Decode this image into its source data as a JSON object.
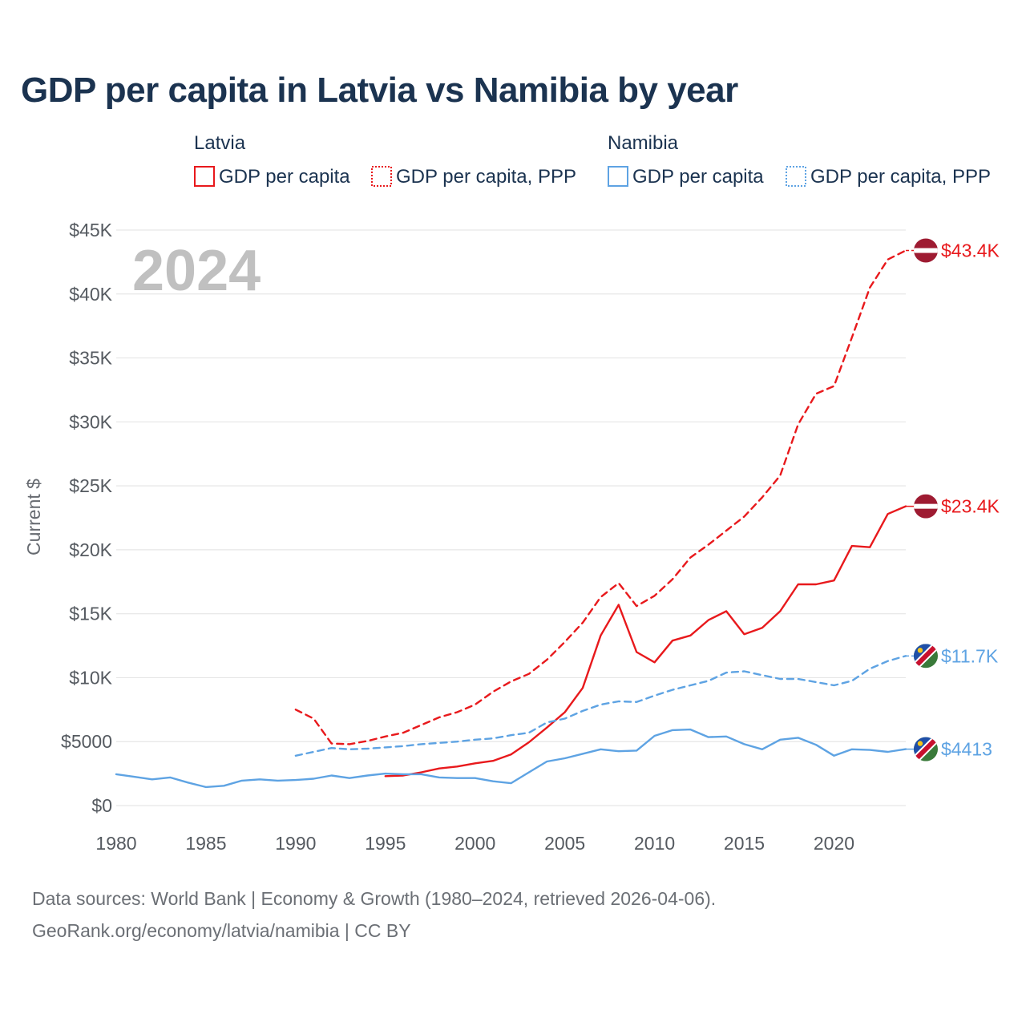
{
  "title": "GDP per capita in Latvia vs Namibia by year",
  "colors": {
    "latvia": "#e8191c",
    "namibia": "#5ea3e3",
    "grid": "#e6e6e6",
    "title": "#1b3350"
  },
  "legend": {
    "groups": [
      {
        "country": "Latvia",
        "items": [
          "GDP per capita",
          "GDP per capita, PPP"
        ]
      },
      {
        "country": "Namibia",
        "items": [
          "GDP per capita",
          "GDP per capita, PPP"
        ]
      }
    ]
  },
  "watermark_year": "2024",
  "end_labels": [
    "$43.4K",
    "$23.4K",
    "$11.7K",
    "$4413"
  ],
  "source": {
    "line1": "Data sources: World Bank | Economy & Growth (1980–2024, retrieved 2026-04-06).",
    "line2": "GeoRank.org/economy/latvia/namibia | CC BY"
  },
  "chart_data": {
    "type": "line",
    "title": "GDP per capita in Latvia vs Namibia by year",
    "xlabel": "",
    "ylabel": "Current $",
    "xlim": [
      1980,
      2024
    ],
    "ylim": [
      0,
      45000
    ],
    "grid": true,
    "legend_position": "top",
    "x_ticks": [
      1980,
      1985,
      1990,
      1995,
      2000,
      2005,
      2010,
      2015,
      2020
    ],
    "x_tick_labels": [
      "1980",
      "1985",
      "1990",
      "1995",
      "2000",
      "2005",
      "2010",
      "2015",
      "2020"
    ],
    "y_ticks": [
      0,
      5000,
      10000,
      15000,
      20000,
      25000,
      30000,
      35000,
      40000,
      45000
    ],
    "y_tick_labels": [
      "$0",
      "$5000",
      "$10K",
      "$15K",
      "$20K",
      "$25K",
      "$30K",
      "$35K",
      "$40K",
      "$45K"
    ],
    "series": [
      {
        "name": "Latvia GDP per capita, PPP",
        "country": "Latvia",
        "style": "dashed",
        "end_label": "$43.4K",
        "x": [
          1990,
          1991,
          1992,
          1993,
          1994,
          1995,
          1996,
          1997,
          1998,
          1999,
          2000,
          2001,
          2002,
          2003,
          2004,
          2005,
          2006,
          2007,
          2008,
          2009,
          2010,
          2011,
          2012,
          2013,
          2014,
          2015,
          2016,
          2017,
          2018,
          2019,
          2020,
          2021,
          2022,
          2023,
          2024
        ],
        "values": [
          7500,
          6800,
          4850,
          4800,
          5050,
          5400,
          5700,
          6300,
          6900,
          7300,
          7900,
          8900,
          9700,
          10300,
          11400,
          12800,
          14300,
          16300,
          17400,
          15600,
          16400,
          17700,
          19400,
          20400,
          21500,
          22600,
          24100,
          25800,
          29800,
          32200,
          32800,
          36600,
          40500,
          42700,
          43400
        ]
      },
      {
        "name": "Latvia GDP per capita",
        "country": "Latvia",
        "style": "solid",
        "end_label": "$23.4K",
        "x": [
          1995,
          1996,
          1997,
          1998,
          1999,
          2000,
          2001,
          2002,
          2003,
          2004,
          2005,
          2006,
          2007,
          2008,
          2009,
          2010,
          2011,
          2012,
          2013,
          2014,
          2015,
          2016,
          2017,
          2018,
          2019,
          2020,
          2021,
          2022,
          2023,
          2024
        ],
        "values": [
          2300,
          2350,
          2600,
          2900,
          3050,
          3300,
          3500,
          4000,
          4950,
          6100,
          7300,
          9200,
          13300,
          15700,
          12000,
          11200,
          12900,
          13300,
          14500,
          15200,
          13400,
          13900,
          15200,
          17300,
          17300,
          17600,
          20300,
          20200,
          22800,
          23400
        ]
      },
      {
        "name": "Namibia GDP per capita, PPP",
        "country": "Namibia",
        "style": "dashed",
        "end_label": "$11.7K",
        "x": [
          1990,
          1991,
          1992,
          1993,
          1994,
          1995,
          1996,
          1997,
          1998,
          1999,
          2000,
          2001,
          2002,
          2003,
          2004,
          2005,
          2006,
          2007,
          2008,
          2009,
          2010,
          2011,
          2012,
          2013,
          2014,
          2015,
          2016,
          2017,
          2018,
          2019,
          2020,
          2021,
          2022,
          2023,
          2024
        ],
        "values": [
          3900,
          4200,
          4500,
          4400,
          4450,
          4550,
          4650,
          4800,
          4900,
          5000,
          5150,
          5250,
          5500,
          5700,
          6500,
          6800,
          7400,
          7900,
          8150,
          8100,
          8600,
          9050,
          9400,
          9750,
          10400,
          10500,
          10200,
          9900,
          9900,
          9650,
          9400,
          9750,
          10700,
          11300,
          11700
        ]
      },
      {
        "name": "Namibia GDP per capita",
        "country": "Namibia",
        "style": "solid",
        "end_label": "$4413",
        "x": [
          1980,
          1981,
          1982,
          1983,
          1984,
          1985,
          1986,
          1987,
          1988,
          1989,
          1990,
          1991,
          1992,
          1993,
          1994,
          1995,
          1996,
          1997,
          1998,
          1999,
          2000,
          2001,
          2002,
          2003,
          2004,
          2005,
          2006,
          2007,
          2008,
          2009,
          2010,
          2011,
          2012,
          2013,
          2014,
          2015,
          2016,
          2017,
          2018,
          2019,
          2020,
          2021,
          2022,
          2023,
          2024
        ],
        "values": [
          2450,
          2250,
          2050,
          2200,
          1800,
          1450,
          1550,
          1950,
          2050,
          1950,
          2000,
          2100,
          2350,
          2150,
          2350,
          2500,
          2450,
          2450,
          2200,
          2150,
          2150,
          1900,
          1750,
          2600,
          3450,
          3700,
          4050,
          4400,
          4250,
          4300,
          5450,
          5900,
          5950,
          5350,
          5400,
          4800,
          4400,
          5150,
          5300,
          4750,
          3900,
          4400,
          4350,
          4200,
          4413
        ]
      }
    ]
  }
}
